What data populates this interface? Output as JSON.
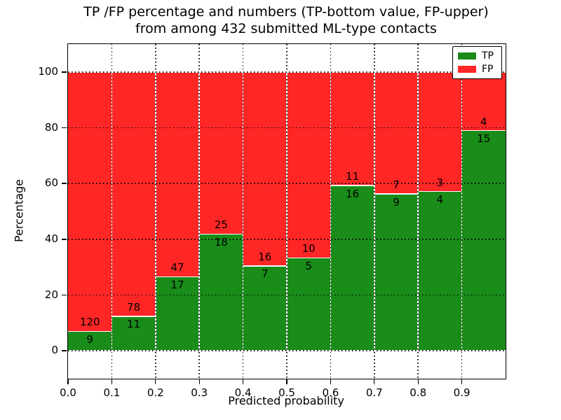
{
  "figure": {
    "title_line1": "TP /FP percentage and numbers (TP-bottom value, FP-upper)",
    "title_line2": "from among 432 submitted ML-type contacts",
    "xlabel": "Predicted probability",
    "ylabel": "Percentage"
  },
  "legend": {
    "position": "upper right",
    "items": [
      {
        "label": "TP",
        "color": "#198c19"
      },
      {
        "label": "FP",
        "color": "#ff2626"
      }
    ]
  },
  "chart_data": {
    "type": "bar",
    "subtype": "stacked-percentage-histogram",
    "title": "TP /FP percentage and numbers (TP-bottom value, FP-upper) from among 432 submitted ML-type contacts",
    "xlabel": "Predicted probability",
    "ylabel": "Percentage",
    "total_contacts": 432,
    "grid": true,
    "legend_position": "upper right",
    "xlim": [
      0.0,
      1.0
    ],
    "ylim": [
      -10,
      110
    ],
    "x_tick_values": [
      0.0,
      0.1,
      0.2,
      0.3,
      0.4,
      0.5,
      0.6,
      0.7,
      0.8,
      0.9
    ],
    "x_ticks": [
      "0.0",
      "0.1",
      "0.2",
      "0.3",
      "0.4",
      "0.5",
      "0.6",
      "0.7",
      "0.8",
      "0.9"
    ],
    "y_ticks": [
      0,
      20,
      40,
      60,
      80,
      100
    ],
    "series_colors": {
      "TP": "#198c19",
      "FP": "#ff2626"
    },
    "series": [
      {
        "name": "TP",
        "counts": [
          9,
          11,
          17,
          18,
          7,
          5,
          16,
          9,
          4,
          15
        ]
      },
      {
        "name": "FP",
        "counts": [
          120,
          78,
          47,
          25,
          16,
          10,
          11,
          7,
          3,
          4
        ]
      }
    ],
    "bins": [
      {
        "range": [
          0.0,
          0.1
        ],
        "tp": 9,
        "fp": 120,
        "tp_pct": 6.98,
        "fp_pct": 93.02
      },
      {
        "range": [
          0.1,
          0.2
        ],
        "tp": 11,
        "fp": 78,
        "tp_pct": 12.36,
        "fp_pct": 87.64
      },
      {
        "range": [
          0.2,
          0.3
        ],
        "tp": 17,
        "fp": 47,
        "tp_pct": 26.56,
        "fp_pct": 73.44
      },
      {
        "range": [
          0.3,
          0.4
        ],
        "tp": 18,
        "fp": 25,
        "tp_pct": 41.86,
        "fp_pct": 58.14
      },
      {
        "range": [
          0.4,
          0.5
        ],
        "tp": 7,
        "fp": 16,
        "tp_pct": 30.43,
        "fp_pct": 69.57
      },
      {
        "range": [
          0.5,
          0.6
        ],
        "tp": 5,
        "fp": 10,
        "tp_pct": 33.33,
        "fp_pct": 66.67
      },
      {
        "range": [
          0.6,
          0.7
        ],
        "tp": 16,
        "fp": 11,
        "tp_pct": 59.26,
        "fp_pct": 40.74
      },
      {
        "range": [
          0.7,
          0.8
        ],
        "tp": 9,
        "fp": 7,
        "tp_pct": 56.25,
        "fp_pct": 43.75
      },
      {
        "range": [
          0.8,
          0.9
        ],
        "tp": 4,
        "fp": 3,
        "tp_pct": 57.14,
        "fp_pct": 42.86
      },
      {
        "range": [
          0.9,
          1.0
        ],
        "tp": 15,
        "fp": 4,
        "tp_pct": 78.95,
        "fp_pct": 21.05
      }
    ]
  }
}
